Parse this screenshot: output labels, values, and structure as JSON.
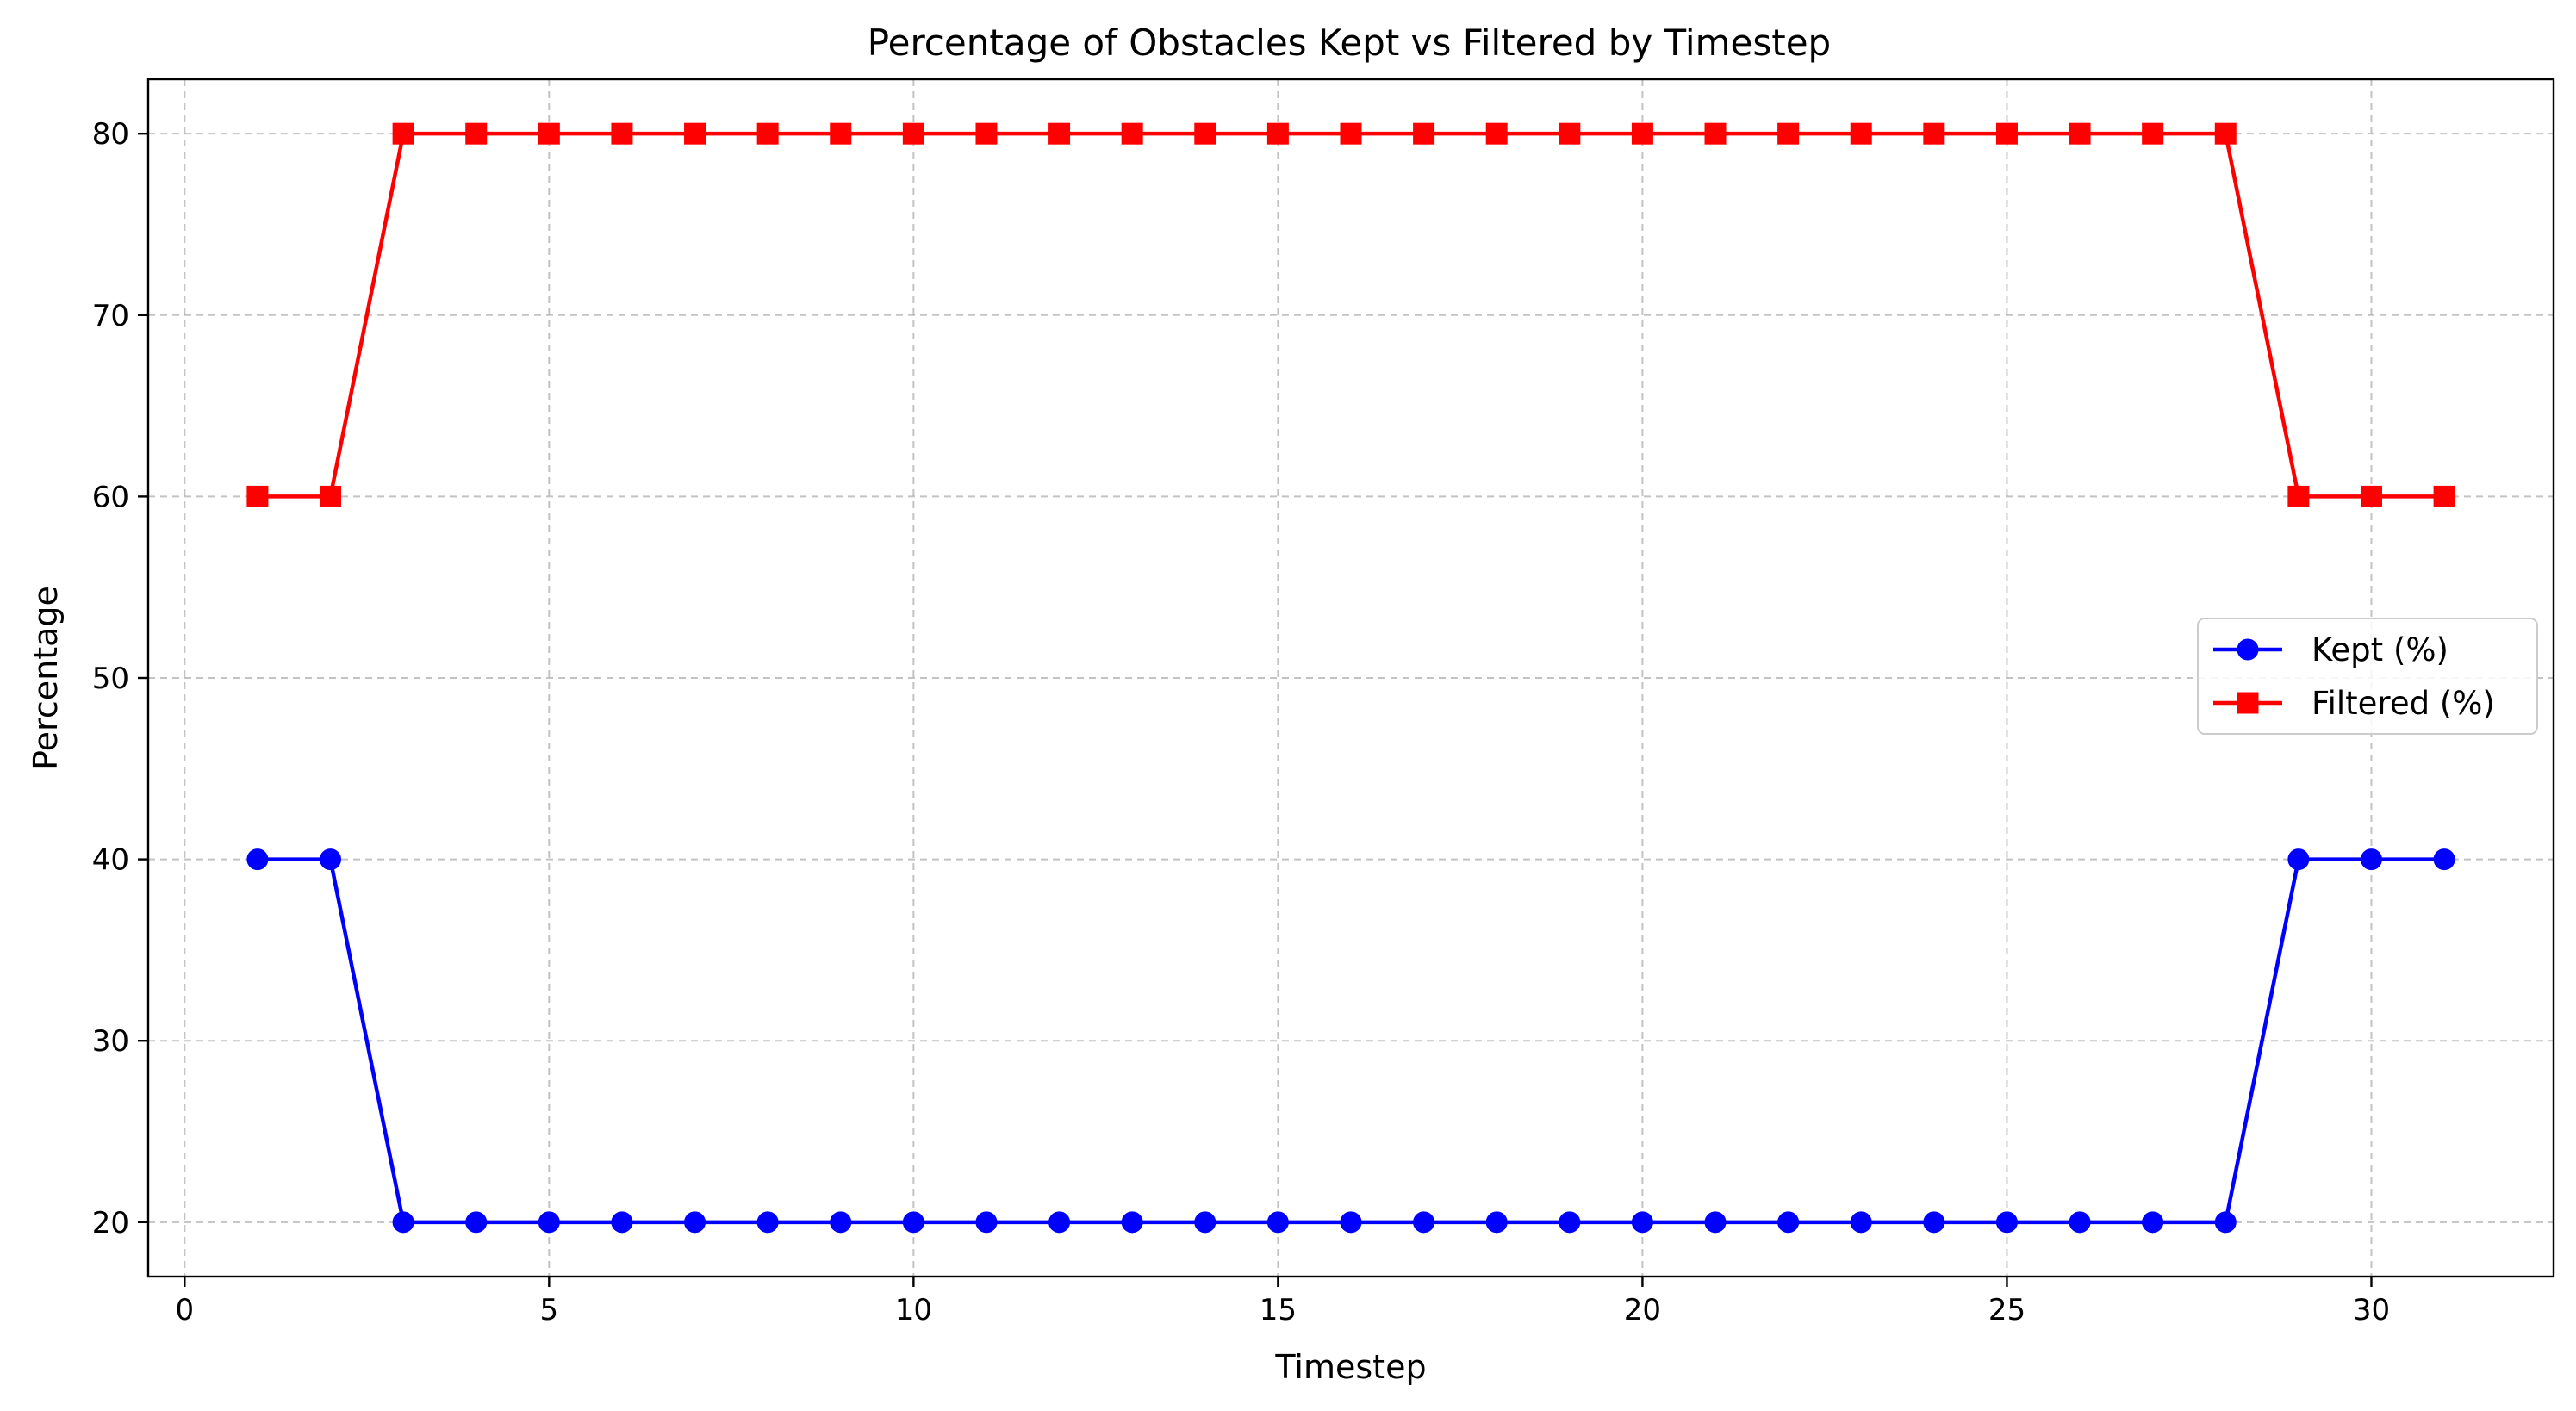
{
  "chart_data": {
    "type": "line",
    "title": "Percentage of Obstacles Kept vs Filtered by Timestep",
    "xlabel": "Timestep",
    "ylabel": "Percentage",
    "xlim": [
      -0.5,
      32.5
    ],
    "ylim": [
      17,
      83
    ],
    "xticks": [
      0,
      5,
      10,
      15,
      20,
      25,
      30
    ],
    "yticks": [
      20,
      30,
      40,
      50,
      60,
      70,
      80
    ],
    "grid": true,
    "legend_position": "center-right",
    "x": [
      1,
      2,
      3,
      4,
      5,
      6,
      7,
      8,
      9,
      10,
      11,
      12,
      13,
      14,
      15,
      16,
      17,
      18,
      19,
      20,
      21,
      22,
      23,
      24,
      25,
      26,
      27,
      28,
      29,
      30,
      31
    ],
    "series": [
      {
        "name": "Kept (%)",
        "color": "#0000ff",
        "marker": "circle",
        "values": [
          40,
          40,
          20,
          20,
          20,
          20,
          20,
          20,
          20,
          20,
          20,
          20,
          20,
          20,
          20,
          20,
          20,
          20,
          20,
          20,
          20,
          20,
          20,
          20,
          20,
          20,
          20,
          20,
          40,
          40,
          40
        ]
      },
      {
        "name": "Filtered (%)",
        "color": "#ff0000",
        "marker": "square",
        "values": [
          60,
          60,
          80,
          80,
          80,
          80,
          80,
          80,
          80,
          80,
          80,
          80,
          80,
          80,
          80,
          80,
          80,
          80,
          80,
          80,
          80,
          80,
          80,
          80,
          80,
          80,
          80,
          80,
          60,
          60,
          60
        ]
      }
    ]
  }
}
